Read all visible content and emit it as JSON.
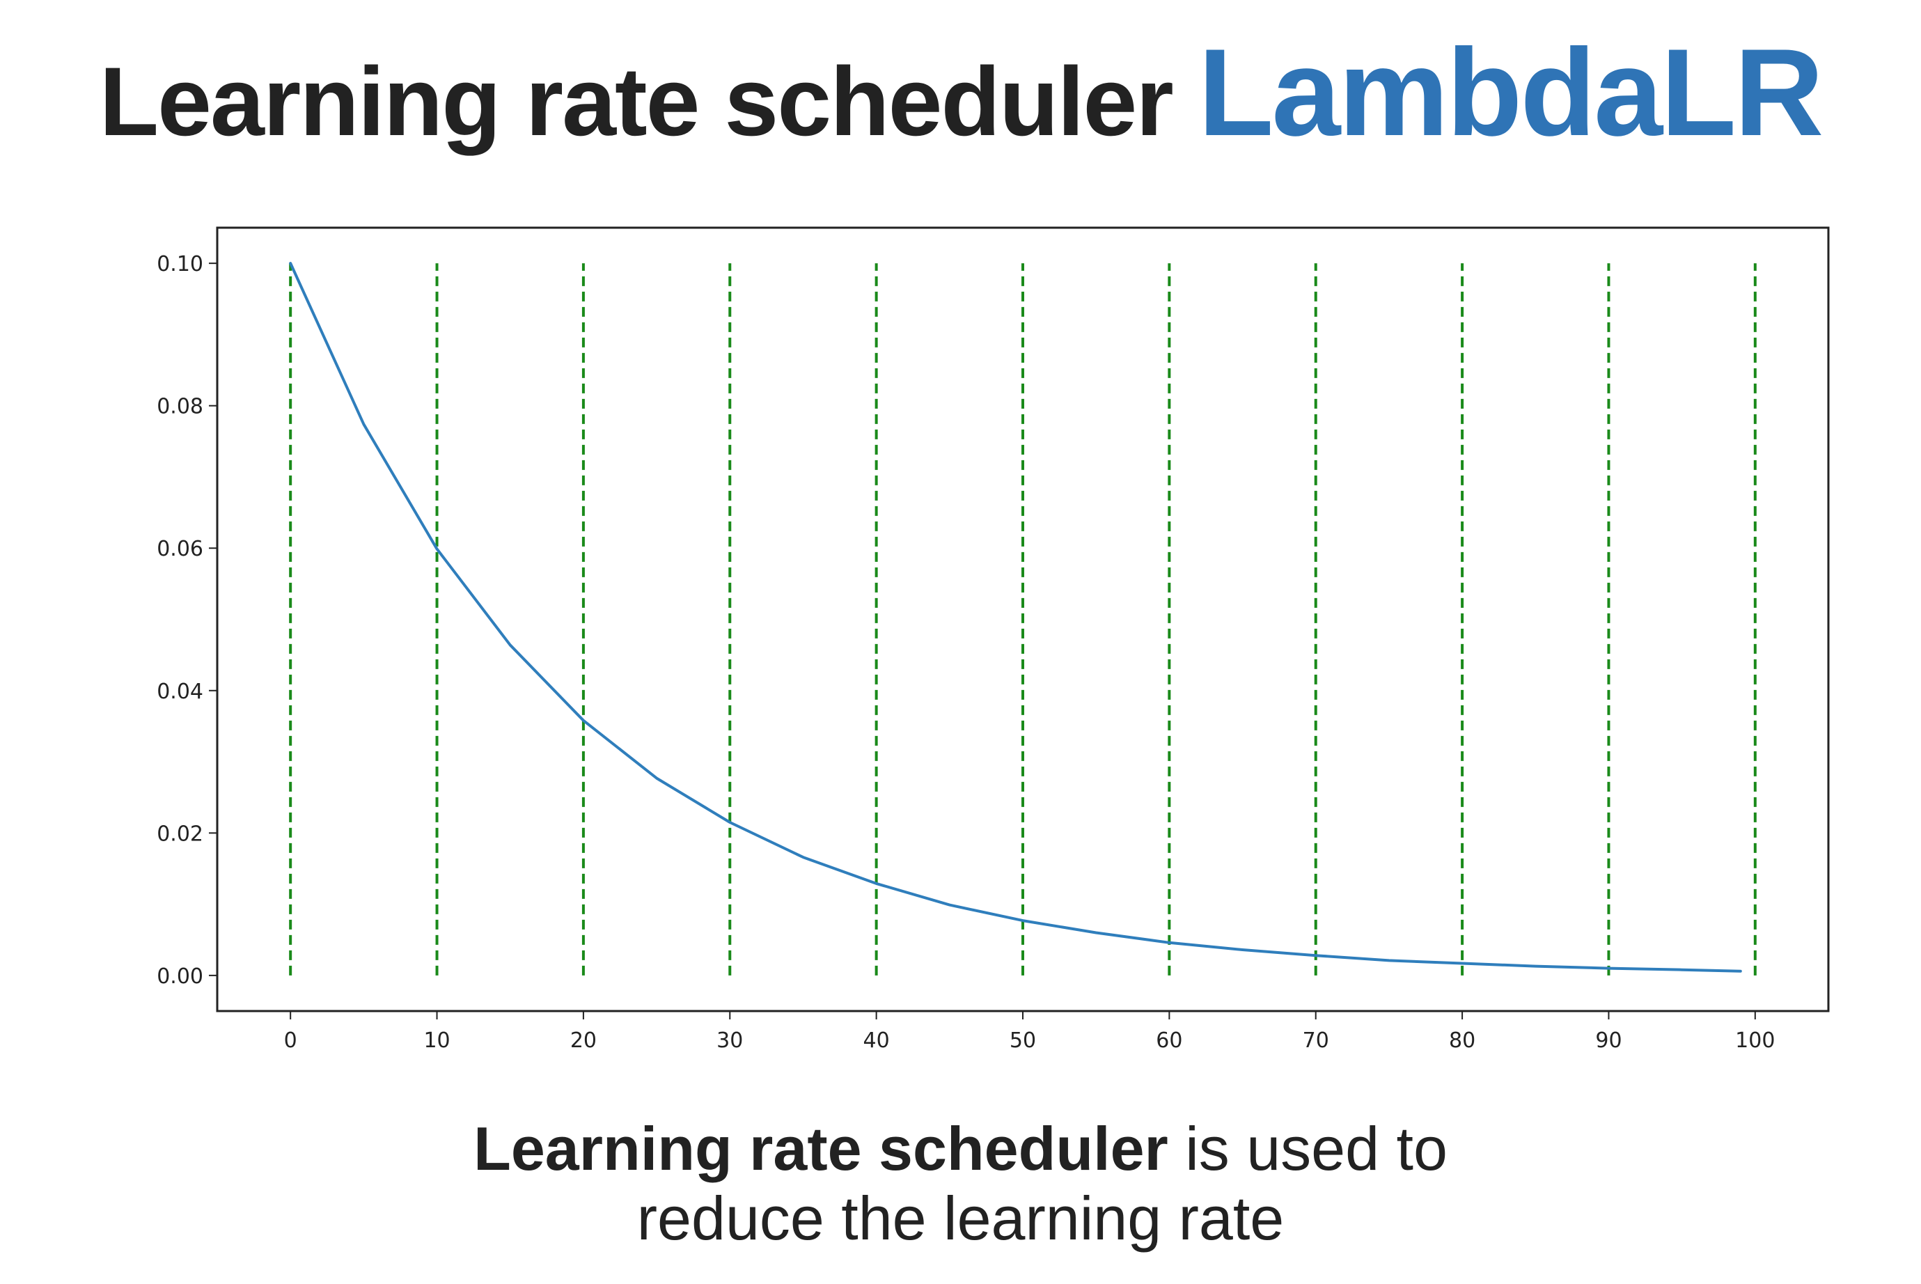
{
  "header": {
    "title_main": "Learning rate scheduler",
    "title_accent": "LambdaLR",
    "accent_color": "#2f74b6"
  },
  "caption": {
    "bold_text": "Learning rate scheduler",
    "rest_line1": " is used to",
    "line2": "reduce the learning rate"
  },
  "chart_data": {
    "type": "line",
    "title": "",
    "xlabel": "",
    "ylabel": "",
    "xlim": [
      -5,
      105
    ],
    "ylim": [
      -0.005,
      0.105
    ],
    "xticks": [
      0,
      10,
      20,
      30,
      40,
      50,
      60,
      70,
      80,
      90,
      100
    ],
    "xtick_labels": [
      "0",
      "10",
      "20",
      "30",
      "40",
      "50",
      "60",
      "70",
      "80",
      "90",
      "100"
    ],
    "yticks": [
      0.0,
      0.02,
      0.04,
      0.06,
      0.08,
      0.1
    ],
    "ytick_labels": [
      "0.00",
      "0.02",
      "0.04",
      "0.06",
      "0.08",
      "0.10"
    ],
    "grid": false,
    "series": [
      {
        "color": "#2f7ebc",
        "x": [
          0,
          5,
          10,
          15,
          20,
          25,
          30,
          35,
          40,
          45,
          50,
          55,
          60,
          65,
          70,
          75,
          80,
          85,
          90,
          95,
          99
        ],
        "y": [
          0.1,
          0.0774,
          0.0599,
          0.0464,
          0.0358,
          0.0277,
          0.0215,
          0.0166,
          0.0129,
          0.0099,
          0.0077,
          0.006,
          0.0046,
          0.0036,
          0.0028,
          0.0021,
          0.0017,
          0.0013,
          0.001,
          0.0008,
          0.0006
        ]
      }
    ],
    "vlines": {
      "x": [
        0,
        10,
        20,
        30,
        40,
        50,
        60,
        70,
        80,
        90,
        100
      ],
      "ymin": 0.0,
      "ymax": 0.1,
      "color": "#1a8a1a",
      "style": "dashed"
    }
  }
}
